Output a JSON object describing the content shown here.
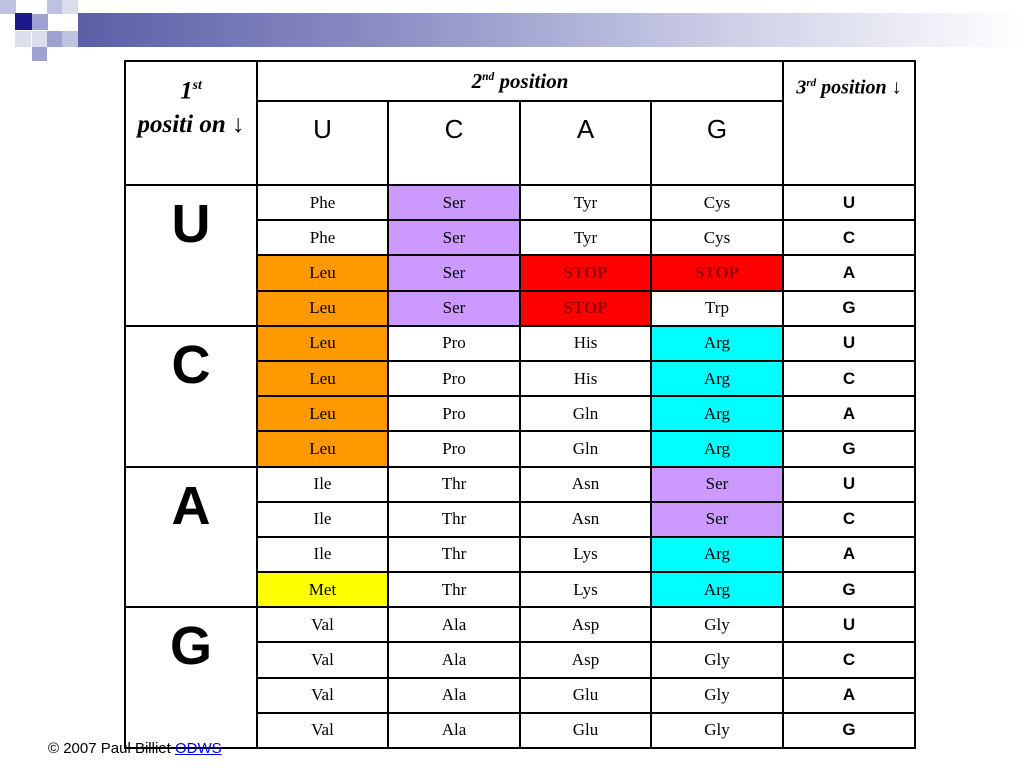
{
  "header": {
    "first_label": "1",
    "first_sup": "st",
    "first_rest": "positi on ↓",
    "second_label": "2",
    "second_sup": "nd",
    "second_rest": " position",
    "third_label": "3",
    "third_sup": "rd",
    "third_rest": " position ↓",
    "second_bases": [
      "U",
      "C",
      "A",
      "G"
    ]
  },
  "third_bases": [
    "U",
    "C",
    "A",
    "G"
  ],
  "groups": [
    {
      "first": "U",
      "rows": [
        {
          "cells": [
            {
              "t": "Phe",
              "c": "#ffffff"
            },
            {
              "t": "Ser",
              "c": "#cc99ff"
            },
            {
              "t": "Tyr",
              "c": "#ffffff"
            },
            {
              "t": "Cys",
              "c": "#ffffff"
            }
          ]
        },
        {
          "cells": [
            {
              "t": "Phe",
              "c": "#ffffff"
            },
            {
              "t": "Ser",
              "c": "#cc99ff"
            },
            {
              "t": "Tyr",
              "c": "#ffffff"
            },
            {
              "t": "Cys",
              "c": "#ffffff"
            }
          ]
        },
        {
          "cells": [
            {
              "t": "Leu",
              "c": "#ff9900"
            },
            {
              "t": "Ser",
              "c": "#cc99ff"
            },
            {
              "t": "STOP",
              "c": "#ff0000"
            },
            {
              "t": "STOP",
              "c": "#ff0000"
            }
          ]
        },
        {
          "cells": [
            {
              "t": "Leu",
              "c": "#ff9900"
            },
            {
              "t": "Ser",
              "c": "#cc99ff"
            },
            {
              "t": "STOP",
              "c": "#ff0000"
            },
            {
              "t": "Trp",
              "c": "#ffffff"
            }
          ]
        }
      ]
    },
    {
      "first": "C",
      "rows": [
        {
          "cells": [
            {
              "t": "Leu",
              "c": "#ff9900"
            },
            {
              "t": "Pro",
              "c": "#ffffff"
            },
            {
              "t": "His",
              "c": "#ffffff"
            },
            {
              "t": "Arg",
              "c": "#00ffff"
            }
          ]
        },
        {
          "cells": [
            {
              "t": "Leu",
              "c": "#ff9900"
            },
            {
              "t": "Pro",
              "c": "#ffffff"
            },
            {
              "t": "His",
              "c": "#ffffff"
            },
            {
              "t": "Arg",
              "c": "#00ffff"
            }
          ]
        },
        {
          "cells": [
            {
              "t": "Leu",
              "c": "#ff9900"
            },
            {
              "t": "Pro",
              "c": "#ffffff"
            },
            {
              "t": "Gln",
              "c": "#ffffff"
            },
            {
              "t": "Arg",
              "c": "#00ffff"
            }
          ]
        },
        {
          "cells": [
            {
              "t": "Leu",
              "c": "#ff9900"
            },
            {
              "t": "Pro",
              "c": "#ffffff"
            },
            {
              "t": "Gln",
              "c": "#ffffff"
            },
            {
              "t": "Arg",
              "c": "#00ffff"
            }
          ]
        }
      ]
    },
    {
      "first": "A",
      "rows": [
        {
          "cells": [
            {
              "t": "Ile",
              "c": "#ffffff"
            },
            {
              "t": "Thr",
              "c": "#ffffff"
            },
            {
              "t": "Asn",
              "c": "#ffffff"
            },
            {
              "t": "Ser",
              "c": "#cc99ff"
            }
          ]
        },
        {
          "cells": [
            {
              "t": "Ile",
              "c": "#ffffff"
            },
            {
              "t": "Thr",
              "c": "#ffffff"
            },
            {
              "t": "Asn",
              "c": "#ffffff"
            },
            {
              "t": "Ser",
              "c": "#cc99ff"
            }
          ]
        },
        {
          "cells": [
            {
              "t": "Ile",
              "c": "#ffffff"
            },
            {
              "t": "Thr",
              "c": "#ffffff"
            },
            {
              "t": "Lys",
              "c": "#ffffff"
            },
            {
              "t": "Arg",
              "c": "#00ffff"
            }
          ]
        },
        {
          "cells": [
            {
              "t": "Met",
              "c": "#ffff00"
            },
            {
              "t": "Thr",
              "c": "#ffffff"
            },
            {
              "t": "Lys",
              "c": "#ffffff"
            },
            {
              "t": "Arg",
              "c": "#00ffff"
            }
          ]
        }
      ]
    },
    {
      "first": "G",
      "rows": [
        {
          "cells": [
            {
              "t": "Val",
              "c": "#ffffff"
            },
            {
              "t": "Ala",
              "c": "#ffffff"
            },
            {
              "t": "Asp",
              "c": "#ffffff"
            },
            {
              "t": "Gly",
              "c": "#ffffff"
            }
          ]
        },
        {
          "cells": [
            {
              "t": "Val",
              "c": "#ffffff"
            },
            {
              "t": "Ala",
              "c": "#ffffff"
            },
            {
              "t": "Asp",
              "c": "#ffffff"
            },
            {
              "t": "Gly",
              "c": "#ffffff"
            }
          ]
        },
        {
          "cells": [
            {
              "t": "Val",
              "c": "#ffffff"
            },
            {
              "t": "Ala",
              "c": "#ffffff"
            },
            {
              "t": "Glu",
              "c": "#ffffff"
            },
            {
              "t": "Gly",
              "c": "#ffffff"
            }
          ]
        },
        {
          "cells": [
            {
              "t": "Val",
              "c": "#ffffff"
            },
            {
              "t": "Ala",
              "c": "#ffffff"
            },
            {
              "t": "Glu",
              "c": "#ffffff"
            },
            {
              "t": "Gly",
              "c": "#ffffff"
            }
          ]
        }
      ]
    }
  ],
  "stop_text_color": "#990000",
  "footer": {
    "copyright": "© 2007 Paul Billiet ",
    "link_text": "ODWS"
  }
}
